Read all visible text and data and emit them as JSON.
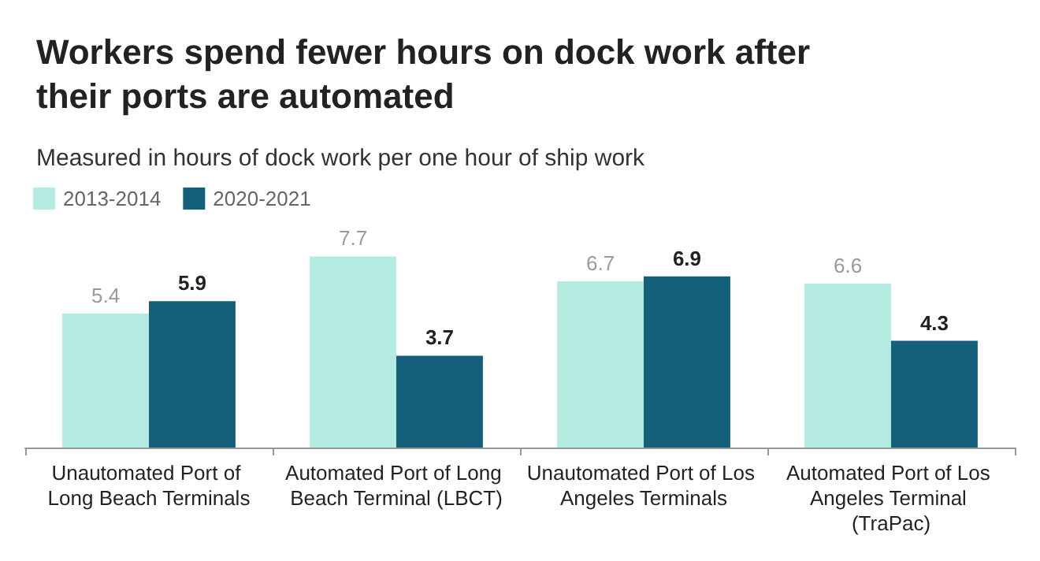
{
  "chart_data": {
    "type": "bar",
    "title": "Workers spend fewer hours on dock work after their ports are automated",
    "subtitle": "Measured in hours of dock work per one hour of ship work",
    "categories": [
      "Unautomated Port of Long Beach Terminals",
      "Automated Port of Long Beach Terminal (LBCT)",
      "Unautomated Port of Los Angeles Terminals",
      "Automated Port of Los Angeles Terminal (TraPac)"
    ],
    "series": [
      {
        "name": "2013-2014",
        "color": "#b3ebe0",
        "values": [
          5.4,
          7.7,
          6.7,
          6.6
        ]
      },
      {
        "name": "2020-2021",
        "color": "#14607a",
        "values": [
          5.9,
          3.7,
          6.9,
          4.3
        ]
      }
    ],
    "data_labels": true,
    "legend": "top left",
    "grid": false
  }
}
